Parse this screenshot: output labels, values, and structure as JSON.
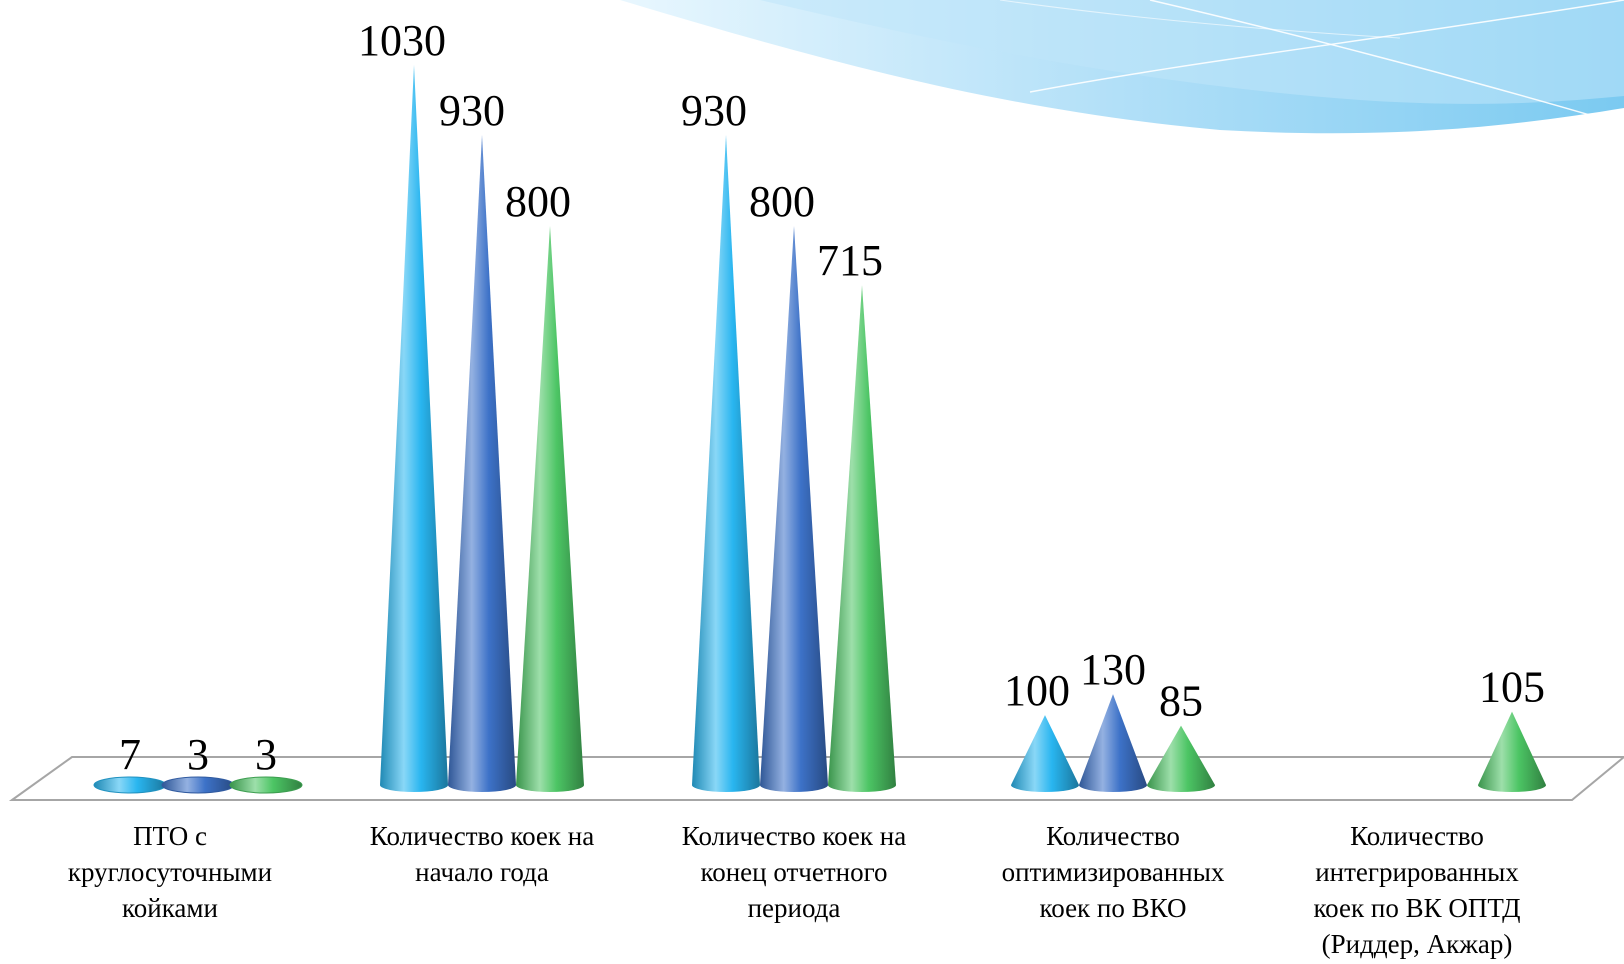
{
  "chart_data": {
    "type": "bar",
    "style": "3d-cone",
    "categories": [
      "ПТО с\nкруглосуточными\nкойками",
      "Количество коек на\nначало года",
      "Количество коек на\nконец отчетного\nпериода",
      "Количество\nоптимизированных\nкоек по ВКО",
      "Количество\nинтегрированных\nкоек по ВК ОПТД\n(Риддер, Акжар)"
    ],
    "series": [
      {
        "values": [
          7,
          1030,
          930,
          100,
          null
        ],
        "color": "#29b6f0"
      },
      {
        "values": [
          3,
          930,
          800,
          130,
          null
        ],
        "color": "#3d72c8"
      },
      {
        "values": [
          3,
          800,
          715,
          85,
          105
        ],
        "color": "#4cc564"
      }
    ],
    "labels": [
      [
        "7",
        "1030",
        "930",
        "100",
        ""
      ],
      [
        "3",
        "930",
        "800",
        "130",
        ""
      ],
      [
        "3",
        "800",
        "715",
        "85",
        "105"
      ]
    ],
    "ylim": [
      0,
      1030
    ],
    "legend": "none",
    "grid": false
  },
  "decoration": {
    "wave_color": "#8fd0f4"
  }
}
